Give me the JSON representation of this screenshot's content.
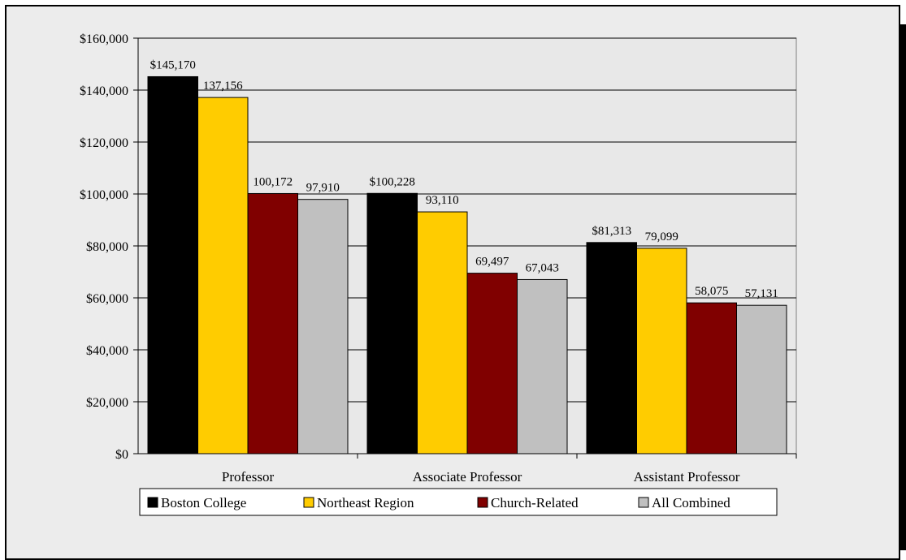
{
  "chart_data": {
    "type": "bar",
    "categories": [
      "Professor",
      "Associate Professor",
      "Assistant Professor"
    ],
    "series": [
      {
        "name": "Boston College",
        "color": "#000000",
        "values": [
          145170,
          100228,
          81313
        ],
        "labels": [
          "$145,170",
          "$100,228",
          "$81,313"
        ]
      },
      {
        "name": "Northeast Region",
        "color": "#FFCC00",
        "values": [
          137156,
          93110,
          79099
        ],
        "labels": [
          "137,156",
          "93,110",
          "79,099"
        ]
      },
      {
        "name": "Church-Related",
        "color": "#800000",
        "values": [
          100172,
          69497,
          58075
        ],
        "labels": [
          "100,172",
          "69,497",
          "58,075"
        ]
      },
      {
        "name": "All Combined",
        "color": "#C0C0C0",
        "values": [
          97910,
          67043,
          57131
        ],
        "labels": [
          "97,910",
          "67,043",
          "57,131"
        ]
      }
    ],
    "ylim": [
      0,
      160000
    ],
    "yticks": [
      0,
      20000,
      40000,
      60000,
      80000,
      100000,
      120000,
      140000,
      160000
    ],
    "ytick_labels": [
      "$0",
      "$20,000",
      "$40,000",
      "$60,000",
      "$80,000",
      "$100,000",
      "$120,000",
      "$140,000",
      "$160,000"
    ],
    "grid": true,
    "legend": "bottom",
    "plot_background": "#E8E8E8"
  }
}
